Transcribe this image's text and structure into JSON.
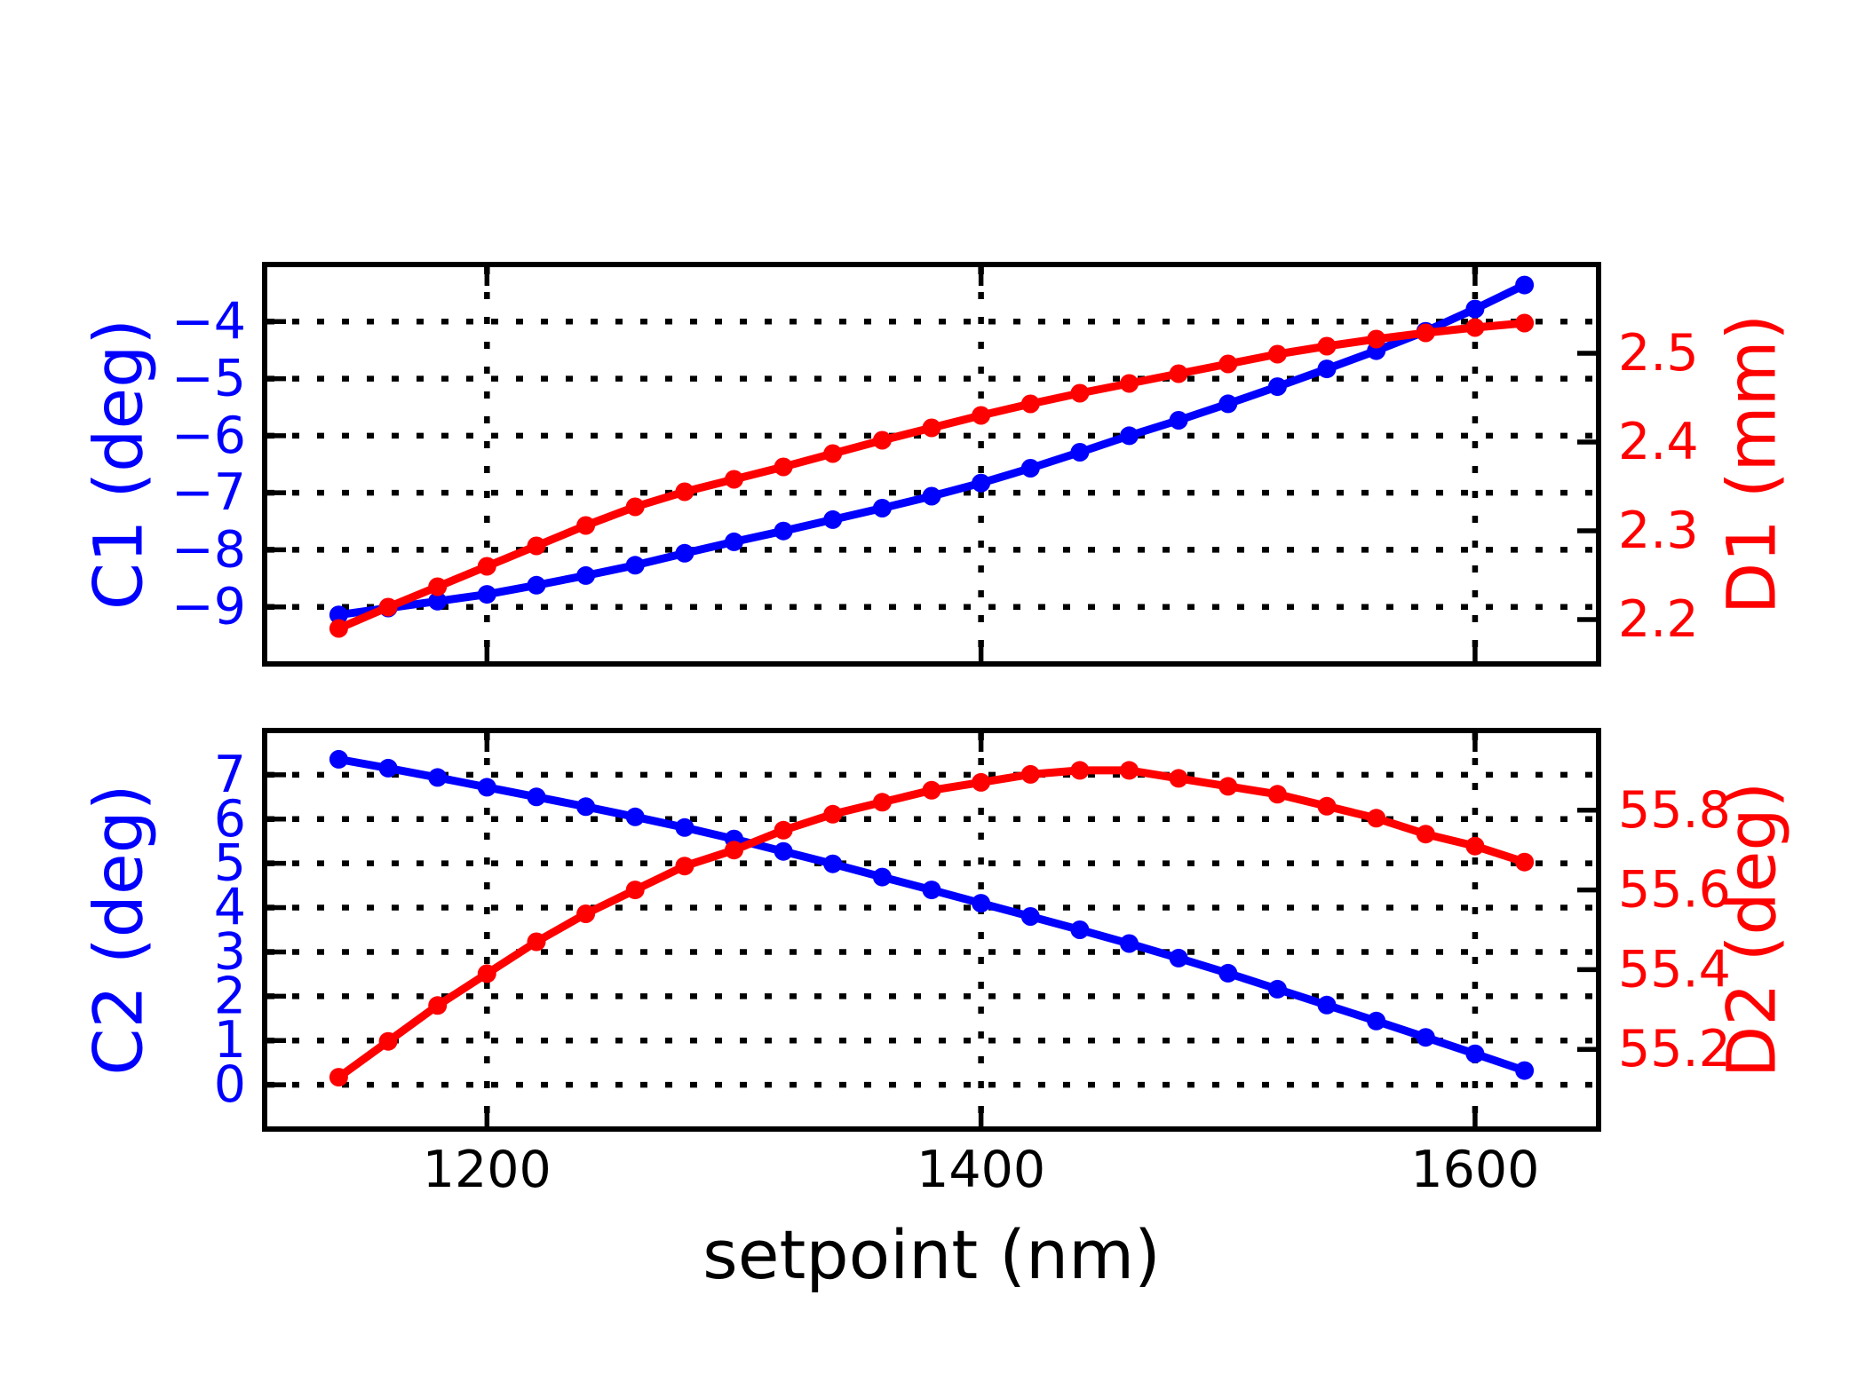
{
  "figure": {
    "background": "#ffffff",
    "axis_color": "#000000",
    "blue": "#0000ff",
    "red": "#ff0000",
    "xlabel": "setpoint (nm)"
  },
  "chart_data": [
    {
      "type": "line",
      "subplot": "top",
      "x": [
        1140,
        1160,
        1180,
        1200,
        1220,
        1240,
        1260,
        1280,
        1300,
        1320,
        1340,
        1360,
        1380,
        1400,
        1420,
        1440,
        1460,
        1480,
        1500,
        1520,
        1540,
        1560,
        1580,
        1600,
        1620
      ],
      "xlim": [
        1110,
        1650
      ],
      "x_ticks": [
        {
          "value": 1200,
          "label": "1200"
        },
        {
          "value": 1400,
          "label": "1400"
        },
        {
          "value": 1600,
          "label": "1600"
        }
      ],
      "show_x_tick_labels": false,
      "grid": {
        "style": "dotted",
        "color": "#000000",
        "from": "left-axis and x ticks"
      },
      "marker": "circle",
      "series": [
        {
          "name": "C1",
          "ylabel": "C1 (deg)",
          "side": "left",
          "color": "#0000ff",
          "ylim": [
            -10,
            -3
          ],
          "y_ticks": [
            {
              "value": -4,
              "label": "−4"
            },
            {
              "value": -5,
              "label": "−5"
            },
            {
              "value": -6,
              "label": "−6"
            },
            {
              "value": -7,
              "label": "−7"
            },
            {
              "value": -8,
              "label": "−8"
            },
            {
              "value": -9,
              "label": "−9"
            }
          ],
          "values": [
            -9.14,
            -9.02,
            -8.9,
            -8.78,
            -8.62,
            -8.45,
            -8.27,
            -8.06,
            -7.86,
            -7.67,
            -7.47,
            -7.27,
            -7.06,
            -6.83,
            -6.57,
            -6.29,
            -6.0,
            -5.73,
            -5.44,
            -5.14,
            -4.83,
            -4.51,
            -4.17,
            -3.78,
            -3.36
          ]
        },
        {
          "name": "D1",
          "ylabel": "D1 (mm)",
          "side": "right",
          "color": "#ff0000",
          "ylim": [
            2.15,
            2.6
          ],
          "y_ticks": [
            {
              "value": 2.5,
              "label": "2.5"
            },
            {
              "value": 2.4,
              "label": "2.4"
            },
            {
              "value": 2.3,
              "label": "2.3"
            },
            {
              "value": 2.2,
              "label": "2.2"
            }
          ],
          "values": [
            2.19,
            2.214,
            2.237,
            2.26,
            2.283,
            2.306,
            2.327,
            2.344,
            2.358,
            2.372,
            2.387,
            2.402,
            2.416,
            2.43,
            2.443,
            2.455,
            2.466,
            2.477,
            2.488,
            2.499,
            2.508,
            2.516,
            2.523,
            2.529,
            2.534
          ]
        }
      ]
    },
    {
      "type": "line",
      "subplot": "bottom",
      "x": [
        1140,
        1160,
        1180,
        1200,
        1220,
        1240,
        1260,
        1280,
        1300,
        1320,
        1340,
        1360,
        1380,
        1400,
        1420,
        1440,
        1460,
        1480,
        1500,
        1520,
        1540,
        1560,
        1580,
        1600,
        1620
      ],
      "xlim": [
        1110,
        1650
      ],
      "x_ticks": [
        {
          "value": 1200,
          "label": "1200"
        },
        {
          "value": 1400,
          "label": "1400"
        },
        {
          "value": 1600,
          "label": "1600"
        }
      ],
      "show_x_tick_labels": true,
      "xlabel": "setpoint (nm)",
      "grid": {
        "style": "dotted",
        "color": "#000000",
        "from": "left-axis and x ticks"
      },
      "marker": "circle",
      "series": [
        {
          "name": "C2",
          "ylabel": "C2 (deg)",
          "side": "left",
          "color": "#0000ff",
          "ylim": [
            -1,
            8
          ],
          "y_ticks": [
            {
              "value": 7,
              "label": "7"
            },
            {
              "value": 6,
              "label": "6"
            },
            {
              "value": 5,
              "label": "5"
            },
            {
              "value": 4,
              "label": "4"
            },
            {
              "value": 3,
              "label": "3"
            },
            {
              "value": 2,
              "label": "2"
            },
            {
              "value": 1,
              "label": "1"
            },
            {
              "value": 0,
              "label": "0"
            }
          ],
          "values": [
            7.35,
            7.15,
            6.94,
            6.72,
            6.5,
            6.28,
            6.05,
            5.81,
            5.55,
            5.27,
            4.99,
            4.69,
            4.4,
            4.1,
            3.8,
            3.5,
            3.19,
            2.86,
            2.52,
            2.16,
            1.8,
            1.44,
            1.07,
            0.7,
            0.32
          ]
        },
        {
          "name": "D2",
          "ylabel": "D2 (deg)",
          "side": "right",
          "color": "#ff0000",
          "ylim": [
            55.0,
            56.0
          ],
          "y_ticks": [
            {
              "value": 55.8,
              "label": "55.8"
            },
            {
              "value": 55.6,
              "label": "55.6"
            },
            {
              "value": 55.4,
              "label": "55.4"
            },
            {
              "value": 55.2,
              "label": "55.2"
            }
          ],
          "values": [
            55.13,
            55.22,
            55.31,
            55.39,
            55.47,
            55.54,
            55.6,
            55.66,
            55.7,
            55.75,
            55.79,
            55.82,
            55.85,
            55.87,
            55.89,
            55.9,
            55.9,
            55.88,
            55.86,
            55.84,
            55.81,
            55.78,
            55.74,
            55.71,
            55.67
          ]
        }
      ]
    }
  ]
}
